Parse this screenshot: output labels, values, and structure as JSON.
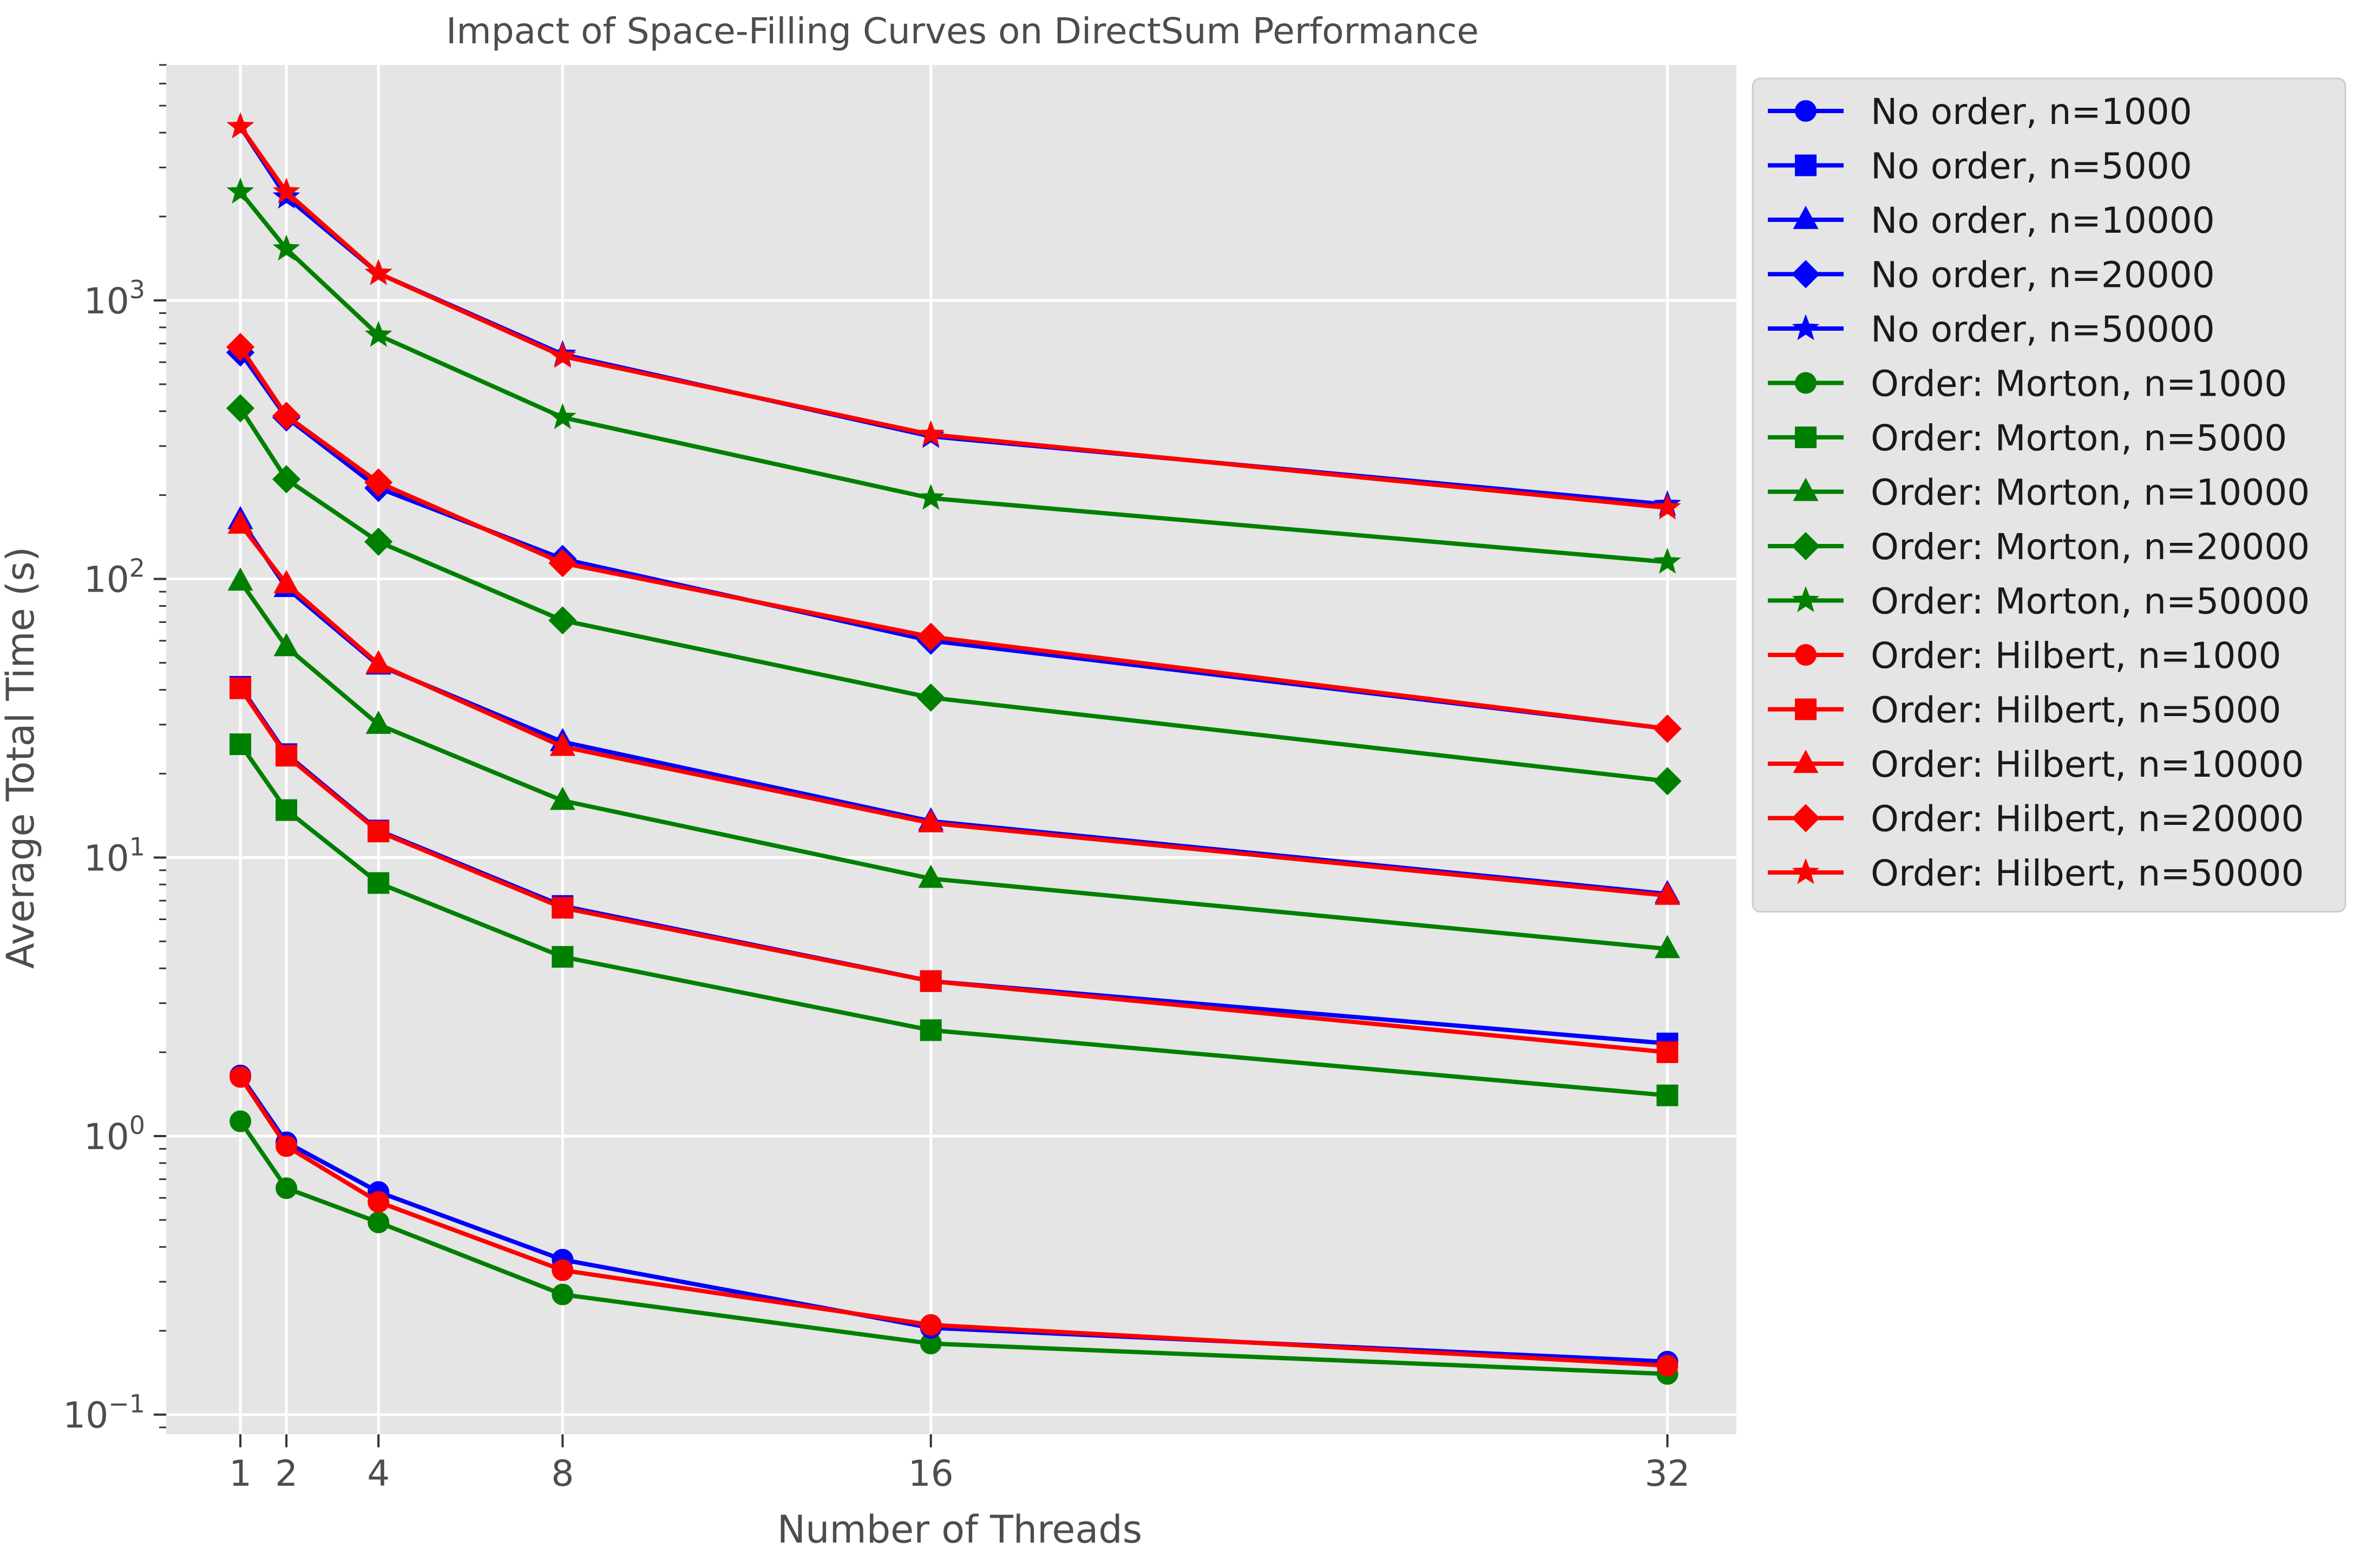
{
  "chart_data": {
    "type": "line",
    "title": "Impact of Space-Filling Curves on DirectSum Performance",
    "xlabel": "Number of Threads",
    "ylabel": "Average Total Time (s)",
    "x": [
      1,
      2,
      4,
      8,
      16,
      32
    ],
    "x_ticks": [
      1,
      2,
      4,
      8,
      16,
      32
    ],
    "x_tick_labels": [
      "1",
      "2",
      "4",
      "8",
      "16",
      "32"
    ],
    "xlim": [
      -0.6,
      33.5
    ],
    "y_scale": "log",
    "ylim": [
      0.085,
      7000
    ],
    "y_ticks": [
      {
        "value": 0.1,
        "base": "10",
        "exp": "−1"
      },
      {
        "value": 1,
        "base": "10",
        "exp": "0"
      },
      {
        "value": 10,
        "base": "10",
        "exp": "1"
      },
      {
        "value": 100,
        "base": "10",
        "exp": "2"
      },
      {
        "value": 1000,
        "base": "10",
        "exp": "3"
      }
    ],
    "grid": true,
    "legend_position": "outside-right",
    "colors": {
      "no_order": "#0000ff",
      "morton": "#008000",
      "hilbert": "#ff0000",
      "plot_background": "#e5e5e5",
      "grid": "#ffffff"
    },
    "series": [
      {
        "name": "No order, n=1000",
        "color": "#0000ff",
        "marker": "circle",
        "values": [
          1.65,
          0.95,
          0.63,
          0.36,
          0.205,
          0.155
        ]
      },
      {
        "name": "No order, n=5000",
        "color": "#0000ff",
        "marker": "square",
        "values": [
          41,
          23.5,
          12.5,
          6.7,
          3.6,
          2.15
        ]
      },
      {
        "name": "No order, n=10000",
        "color": "#0000ff",
        "marker": "triangle",
        "values": [
          163,
          93,
          49,
          26,
          13.5,
          7.4
        ]
      },
      {
        "name": "No order, n=20000",
        "color": "#0000ff",
        "marker": "diamond",
        "values": [
          650,
          380,
          212,
          118,
          60,
          29
        ]
      },
      {
        "name": "No order, n=50000",
        "color": "#0000ff",
        "marker": "star",
        "values": [
          4200,
          2350,
          1250,
          640,
          325,
          185
        ]
      },
      {
        "name": "Order: Morton, n=1000",
        "color": "#008000",
        "marker": "circle",
        "values": [
          1.13,
          0.65,
          0.49,
          0.27,
          0.18,
          0.14
        ]
      },
      {
        "name": "Order: Morton, n=5000",
        "color": "#008000",
        "marker": "square",
        "values": [
          25.5,
          14.8,
          8.1,
          4.4,
          2.4,
          1.4
        ]
      },
      {
        "name": "Order: Morton, n=10000",
        "color": "#008000",
        "marker": "triangle",
        "values": [
          98,
          57,
          30,
          16,
          8.4,
          4.7
        ]
      },
      {
        "name": "Order: Morton, n=20000",
        "color": "#008000",
        "marker": "diamond",
        "values": [
          410,
          228,
          136,
          71,
          37.5,
          18.8
        ]
      },
      {
        "name": "Order: Morton, n=50000",
        "color": "#008000",
        "marker": "star",
        "values": [
          2450,
          1530,
          750,
          380,
          195,
          115
        ]
      },
      {
        "name": "Order: Hilbert, n=1000",
        "color": "#ff0000",
        "marker": "circle",
        "values": [
          1.63,
          0.92,
          0.58,
          0.33,
          0.21,
          0.15
        ]
      },
      {
        "name": "Order: Hilbert, n=5000",
        "color": "#ff0000",
        "marker": "square",
        "values": [
          40.5,
          23.2,
          12.4,
          6.6,
          3.6,
          2.0
        ]
      },
      {
        "name": "Order: Hilbert, n=10000",
        "color": "#ff0000",
        "marker": "triangle",
        "values": [
          157,
          96,
          49.5,
          25,
          13.3,
          7.3
        ]
      },
      {
        "name": "Order: Hilbert, n=20000",
        "color": "#ff0000",
        "marker": "diamond",
        "values": [
          680,
          385,
          222,
          114,
          62,
          29
        ]
      },
      {
        "name": "Order: Hilbert, n=50000",
        "color": "#ff0000",
        "marker": "star",
        "values": [
          4200,
          2450,
          1250,
          630,
          330,
          180
        ]
      }
    ]
  }
}
